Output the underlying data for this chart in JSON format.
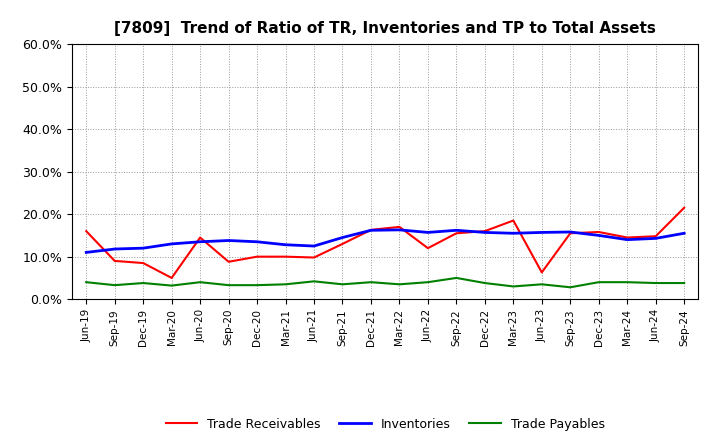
{
  "title": "[7809]  Trend of Ratio of TR, Inventories and TP to Total Assets",
  "x_labels": [
    "Jun-19",
    "Sep-19",
    "Dec-19",
    "Mar-20",
    "Jun-20",
    "Sep-20",
    "Dec-20",
    "Mar-21",
    "Jun-21",
    "Sep-21",
    "Dec-21",
    "Mar-22",
    "Jun-22",
    "Sep-22",
    "Dec-22",
    "Mar-23",
    "Jun-23",
    "Sep-23",
    "Dec-23",
    "Mar-24",
    "Jun-24",
    "Sep-24"
  ],
  "trade_receivables": [
    0.16,
    0.09,
    0.085,
    0.05,
    0.145,
    0.088,
    0.1,
    0.1,
    0.098,
    0.13,
    0.163,
    0.17,
    0.12,
    0.155,
    0.16,
    0.185,
    0.063,
    0.155,
    0.158,
    0.145,
    0.148,
    0.215
  ],
  "inventories": [
    0.11,
    0.118,
    0.12,
    0.13,
    0.135,
    0.138,
    0.135,
    0.128,
    0.125,
    0.145,
    0.162,
    0.163,
    0.157,
    0.162,
    0.157,
    0.155,
    0.157,
    0.158,
    0.15,
    0.14,
    0.143,
    0.155
  ],
  "trade_payables": [
    0.04,
    0.033,
    0.038,
    0.032,
    0.04,
    0.033,
    0.033,
    0.035,
    0.042,
    0.035,
    0.04,
    0.035,
    0.04,
    0.05,
    0.038,
    0.03,
    0.035,
    0.028,
    0.04,
    0.04,
    0.038,
    0.038
  ],
  "tr_color": "#ff0000",
  "inv_color": "#0000ff",
  "tp_color": "#008000",
  "ylim": [
    0.0,
    0.6
  ],
  "yticks": [
    0.0,
    0.1,
    0.2,
    0.3,
    0.4,
    0.5,
    0.6
  ],
  "legend_labels": [
    "Trade Receivables",
    "Inventories",
    "Trade Payables"
  ],
  "bg_color": "#ffffff",
  "grid_color": "#aaaaaa"
}
